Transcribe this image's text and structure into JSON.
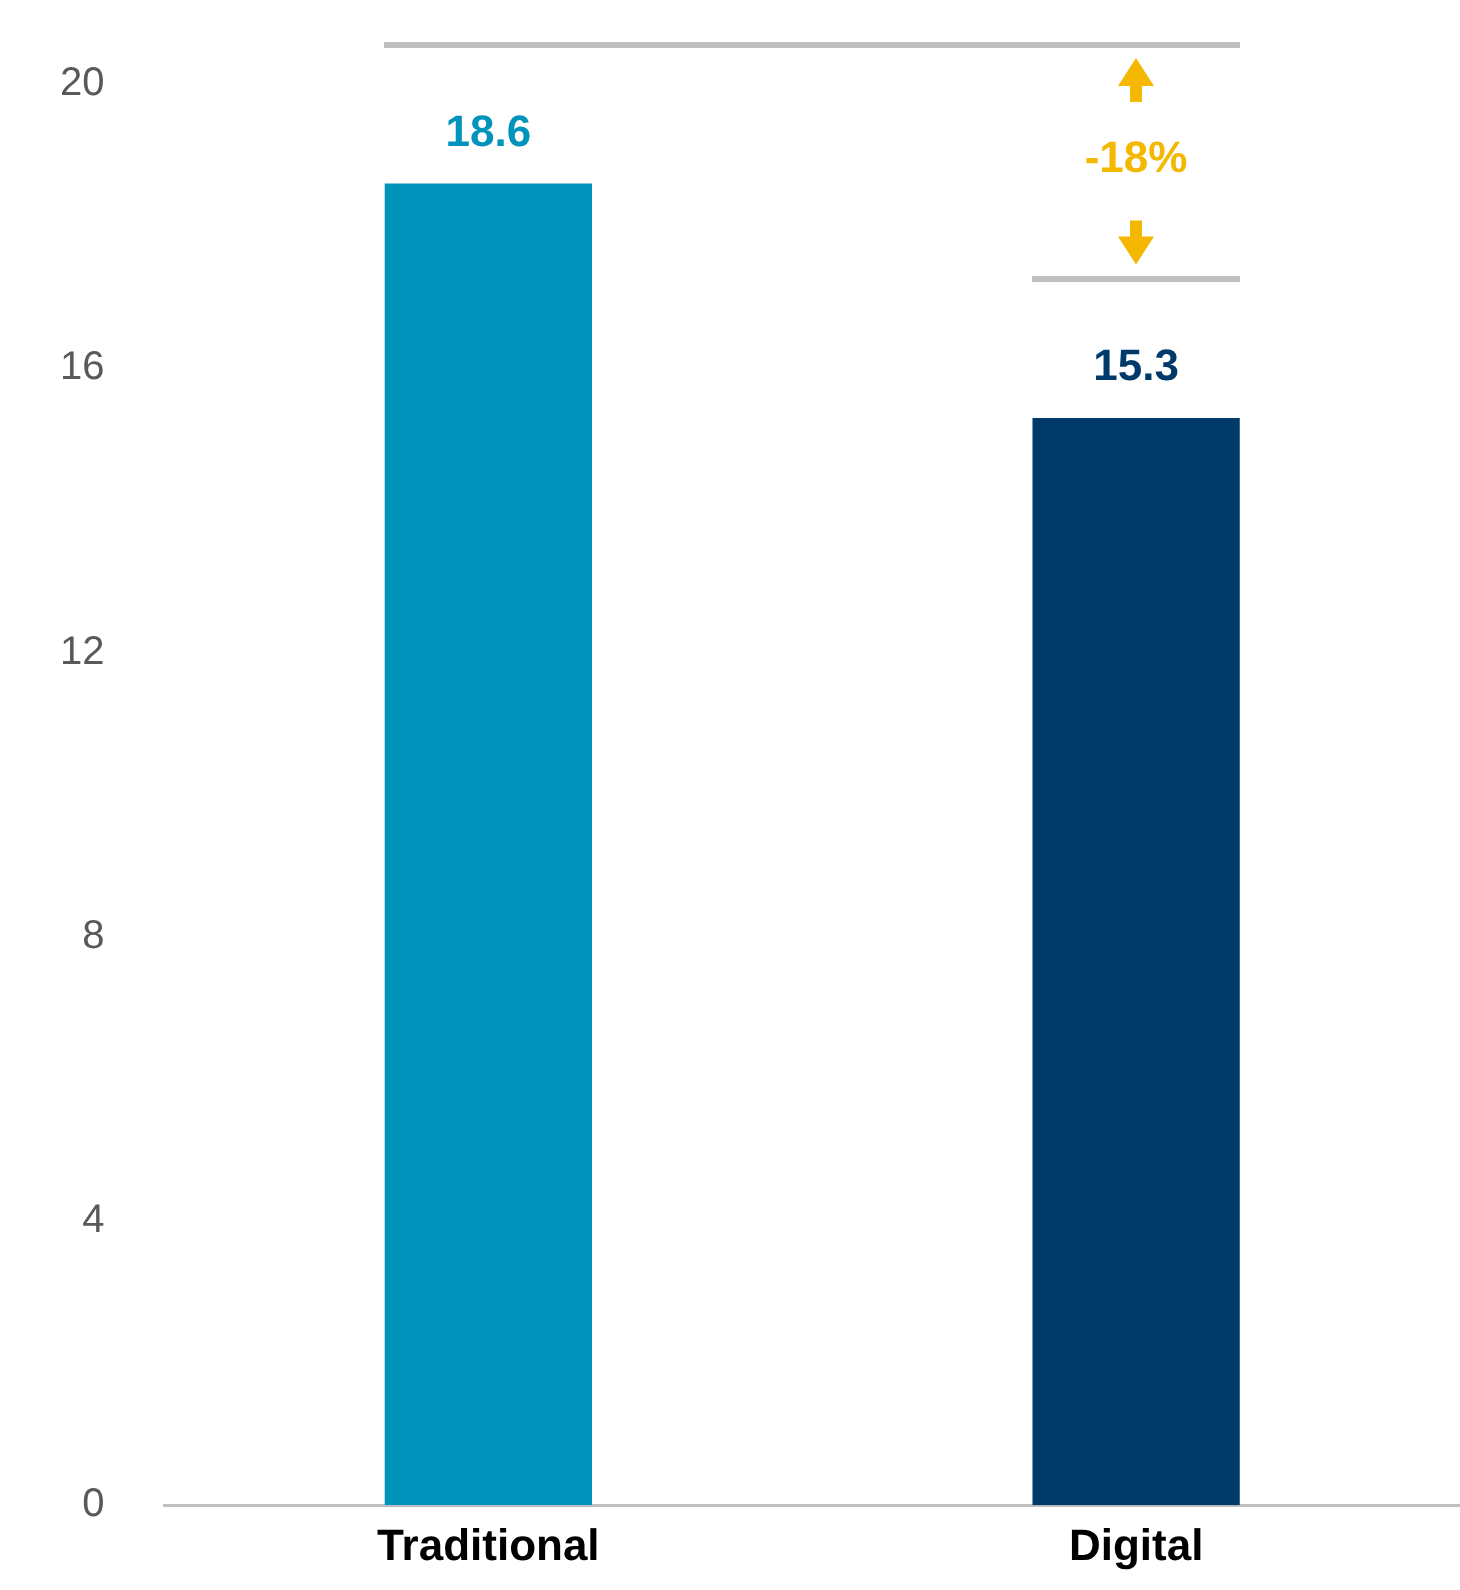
{
  "chart_data": {
    "type": "bar",
    "categories": [
      "Traditional",
      "Digital"
    ],
    "values": [
      18.6,
      15.3
    ],
    "colors": [
      "#0093bb",
      "#003a6b"
    ],
    "ylim": [
      0,
      20
    ],
    "yticks": [
      0,
      4,
      8,
      12,
      16,
      20
    ],
    "grid": false,
    "legend": false,
    "data_labels": true,
    "annotations": [
      "-18%"
    ]
  }
}
